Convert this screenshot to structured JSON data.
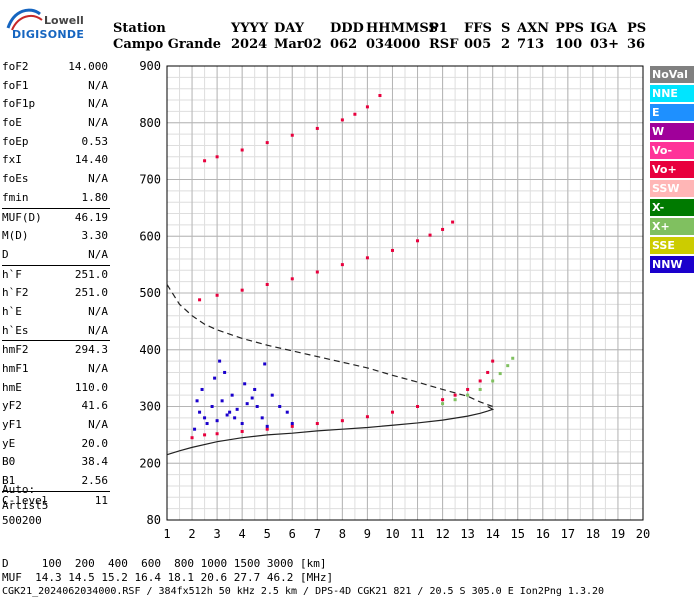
{
  "logo": {
    "line1": "Lowell",
    "line2": "DIGISONDE"
  },
  "header": {
    "labels": [
      "Station",
      "YYYY",
      "DAY",
      "DDD",
      "HHMMSS",
      "P1",
      "FFS",
      "S",
      "AXN",
      "PPS",
      "IGA",
      "PS"
    ],
    "values": [
      "Campo Grande",
      "2024",
      "Mar02",
      "062",
      "034000",
      "RSF",
      "005",
      "2",
      "713",
      "100",
      "03+",
      "36"
    ]
  },
  "parameters": {
    "group1": [
      {
        "key": "foF2",
        "value": "14.000"
      },
      {
        "key": "foF1",
        "value": "N/A"
      },
      {
        "key": "foF1p",
        "value": "N/A"
      },
      {
        "key": "foE",
        "value": "N/A"
      },
      {
        "key": "foEp",
        "value": "0.53"
      },
      {
        "key": "fxI",
        "value": "14.40"
      },
      {
        "key": "foEs",
        "value": "N/A"
      },
      {
        "key": "fmin",
        "value": "1.80"
      }
    ],
    "group2": [
      {
        "key": "MUF(D)",
        "value": "46.19"
      },
      {
        "key": "M(D)",
        "value": "3.30"
      },
      {
        "key": "D",
        "value": "N/A"
      }
    ],
    "group3": [
      {
        "key": "h`F",
        "value": "251.0"
      },
      {
        "key": "h`F2",
        "value": "251.0"
      },
      {
        "key": "h`E",
        "value": "N/A"
      },
      {
        "key": "h`Es",
        "value": "N/A"
      }
    ],
    "group4": [
      {
        "key": "hmF2",
        "value": "294.3"
      },
      {
        "key": "hmF1",
        "value": "N/A"
      },
      {
        "key": "hmE",
        "value": "110.0"
      },
      {
        "key": "yF2",
        "value": "41.6"
      },
      {
        "key": "yF1",
        "value": "N/A"
      },
      {
        "key": "yE",
        "value": "20.0"
      },
      {
        "key": "B0",
        "value": "38.4"
      },
      {
        "key": "B1",
        "value": "2.56"
      }
    ],
    "group5": [
      {
        "key": "C-level",
        "value": "11"
      }
    ]
  },
  "auto": {
    "line1": "Auto:",
    "line2": "Artist5",
    "line3": "500200"
  },
  "legend": [
    {
      "label": "NoVal",
      "color": "#808080"
    },
    {
      "label": "NNE",
      "color": "#00e5ff"
    },
    {
      "label": "E",
      "color": "#1e90ff"
    },
    {
      "label": "W",
      "color": "#a0009a"
    },
    {
      "label": "Vo-",
      "color": "#ff3399"
    },
    {
      "label": "Vo+",
      "color": "#e8003d"
    },
    {
      "label": "SSW",
      "color": "#ffb6b6"
    },
    {
      "label": "X-",
      "color": "#007a00"
    },
    {
      "label": "X+",
      "color": "#80c060"
    },
    {
      "label": "SSE",
      "color": "#cccc00"
    },
    {
      "label": "NNW",
      "color": "#1a00cc"
    }
  ],
  "footer": {
    "line1": "D     100  200  400  600  800 1000 1500 3000 [km]",
    "line2": "MUF  14.3 14.5 15.2 16.4 18.1 20.6 27.7 46.2 [MHz]",
    "line3": "CGK21_2024062034000.RSF / 384fx512h 50 kHz 2.5 km / DPS-4D CGK21 821 / 20.5 S 305.0 E Ion2Png 1.3.20"
  },
  "chart_data": {
    "type": "scatter",
    "title": "",
    "xlabel": "",
    "ylabel": "",
    "xlim": [
      1,
      20
    ],
    "ylim": [
      100,
      900
    ],
    "x_ticks": [
      1,
      2,
      3,
      4,
      5,
      6,
      7,
      8,
      9,
      10,
      11,
      12,
      13,
      14,
      15,
      16,
      17,
      18,
      19,
      20
    ],
    "y_ticks": [
      200,
      300,
      400,
      500,
      600,
      700,
      800,
      900
    ],
    "y_axis_bottom_label": "80",
    "series": [
      {
        "name": "O-trace 1st hop",
        "color": "#e8003d",
        "x": [
          2.0,
          2.5,
          3.0,
          4.0,
          5.0,
          6.0,
          7.0,
          8.0,
          9.0,
          10.0,
          11.0,
          12.0,
          12.5,
          13.0,
          13.5,
          13.8,
          14.0
        ],
        "y": [
          245,
          250,
          252,
          256,
          260,
          265,
          270,
          275,
          282,
          290,
          300,
          312,
          320,
          330,
          345,
          360,
          380
        ]
      },
      {
        "name": "X-trace 1st hop",
        "color": "#80c060",
        "x": [
          12.0,
          12.5,
          13.0,
          13.5,
          14.0,
          14.3,
          14.6,
          14.8
        ],
        "y": [
          305,
          312,
          320,
          330,
          345,
          358,
          372,
          385
        ]
      },
      {
        "name": "2nd hop",
        "color": "#e8003d",
        "x": [
          2.3,
          3.0,
          4.0,
          5.0,
          6.0,
          7.0,
          8.0,
          9.0,
          10.0,
          11.0,
          11.5,
          12.0,
          12.4
        ],
        "y": [
          488,
          496,
          505,
          515,
          525,
          537,
          550,
          562,
          575,
          592,
          602,
          612,
          625
        ]
      },
      {
        "name": "3rd hop",
        "color": "#e8003d",
        "x": [
          2.5,
          3.0,
          4.0,
          5.0,
          6.0,
          7.0,
          8.0,
          8.5,
          9.0,
          9.5
        ],
        "y": [
          733,
          740,
          752,
          765,
          778,
          790,
          805,
          815,
          828,
          848
        ]
      },
      {
        "name": "Spread F scatter",
        "color": "#1a00cc",
        "x": [
          2.1,
          2.3,
          2.5,
          2.8,
          3.0,
          3.2,
          3.4,
          3.6,
          3.8,
          4.0,
          4.2,
          4.5,
          4.8,
          5.0,
          5.5,
          6.0,
          2.4,
          2.9,
          3.1,
          3.5,
          4.1,
          4.6,
          2.2,
          3.3,
          3.7,
          5.2,
          5.8,
          2.6,
          4.4,
          4.9
        ],
        "y": [
          260,
          290,
          280,
          300,
          275,
          310,
          285,
          320,
          295,
          270,
          305,
          330,
          280,
          265,
          300,
          270,
          330,
          350,
          380,
          290,
          340,
          300,
          310,
          360,
          280,
          320,
          290,
          270,
          315,
          375
        ]
      }
    ],
    "profile_solid": {
      "name": "Electron density profile",
      "x": [
        1.0,
        1.5,
        2.0,
        3.0,
        4.0,
        5.0,
        6.0,
        7.0,
        8.0,
        9.0,
        10.0,
        11.0,
        12.0,
        13.0,
        13.5,
        13.8,
        14.0,
        13.8
      ],
      "y": [
        215,
        222,
        228,
        238,
        245,
        250,
        253,
        257,
        260,
        263,
        267,
        271,
        276,
        283,
        288,
        292,
        295,
        300
      ]
    },
    "profile_dashed": {
      "name": "Extrapolated profile",
      "x": [
        1.0,
        1.5,
        2.0,
        2.5,
        3.0,
        4.0,
        5.0,
        6.0,
        7.0,
        8.0,
        9.0,
        10.0,
        11.0,
        12.0,
        13.0,
        13.5,
        14.0
      ],
      "y": [
        515,
        480,
        460,
        445,
        435,
        420,
        408,
        398,
        388,
        378,
        368,
        355,
        343,
        330,
        318,
        308,
        300
      ]
    }
  }
}
